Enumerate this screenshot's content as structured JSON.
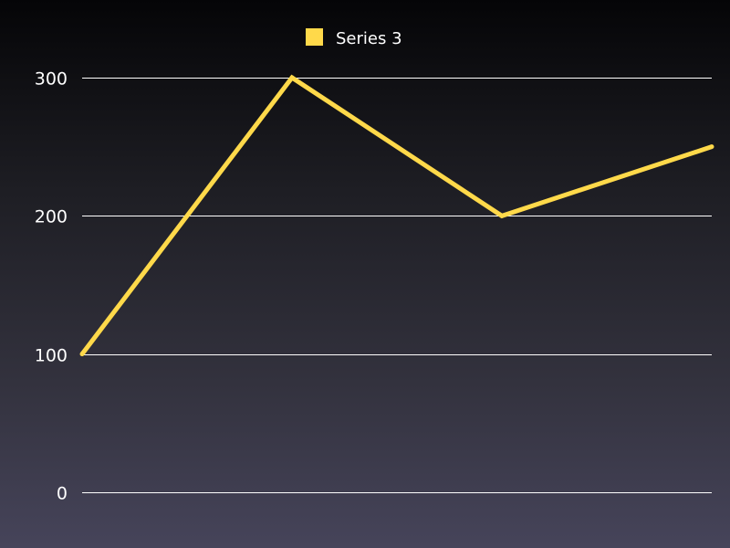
{
  "chart_data": {
    "type": "line",
    "title": "",
    "xlabel": "",
    "ylabel": "",
    "categories": [
      "",
      "",
      "",
      ""
    ],
    "series": [
      {
        "name": "Series 3",
        "values": [
          100,
          300,
          200,
          250
        ],
        "color": "#ffd94a"
      }
    ],
    "ylim": [
      0,
      300
    ],
    "yticks": [
      "0",
      "100",
      "200",
      "300"
    ],
    "grid": true,
    "legend": "top-center"
  }
}
